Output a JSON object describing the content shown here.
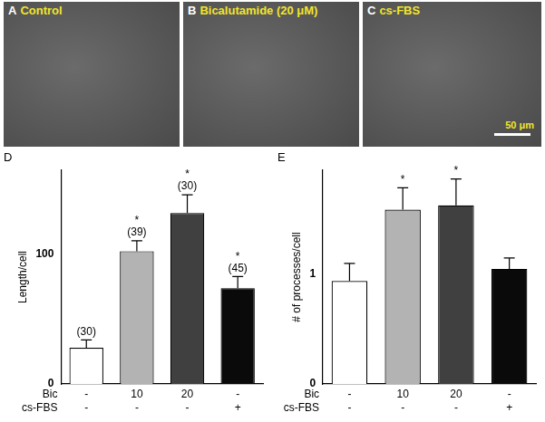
{
  "panels": [
    {
      "letter": "A",
      "label": "Control"
    },
    {
      "letter": "B",
      "label": "Bicalutamide (20 μM)"
    },
    {
      "letter": "C",
      "label": "cs-FBS",
      "scale_bar": "50 μm"
    }
  ],
  "chart_data": [
    {
      "panel": "D",
      "type": "bar",
      "y_label": "Length/cell",
      "categories": [
        [
          "-",
          "-"
        ],
        [
          "10",
          "-"
        ],
        [
          "20",
          "-"
        ],
        [
          "-",
          "+"
        ]
      ],
      "row_labels": [
        "Bic",
        "cs-FBS"
      ],
      "values": [
        28,
        102.5,
        132,
        74
      ],
      "errors": [
        6,
        8,
        14,
        9
      ],
      "annotations": [
        [
          "(30)"
        ],
        [
          "*",
          "(39)"
        ],
        [
          "*",
          "(30)"
        ],
        [
          "*",
          "(45)"
        ]
      ],
      "colors": [
        "#ffffff",
        "#b3b3b3",
        "#404040",
        "#0a0a0a"
      ],
      "ylim": [
        0,
        165
      ],
      "yticks": [
        0,
        100
      ],
      "grid": false
    },
    {
      "panel": "E",
      "type": "bar",
      "y_label": "# of processes/cell",
      "categories": [
        [
          "-",
          "-"
        ],
        [
          "10",
          "-"
        ],
        [
          "20",
          "-"
        ],
        [
          "-",
          "+"
        ]
      ],
      "row_labels": [
        "Bic",
        "cs-FBS"
      ],
      "values": [
        0.94,
        1.59,
        1.63,
        1.05
      ],
      "errors": [
        0.16,
        0.2,
        0.24,
        0.1
      ],
      "annotations": [
        [],
        [
          "*"
        ],
        [
          "*"
        ],
        []
      ],
      "colors": [
        "#ffffff",
        "#b3b3b3",
        "#404040",
        "#0a0a0a"
      ],
      "ylim": [
        0,
        1.95
      ],
      "yticks": [
        0,
        1
      ],
      "grid": false
    }
  ]
}
